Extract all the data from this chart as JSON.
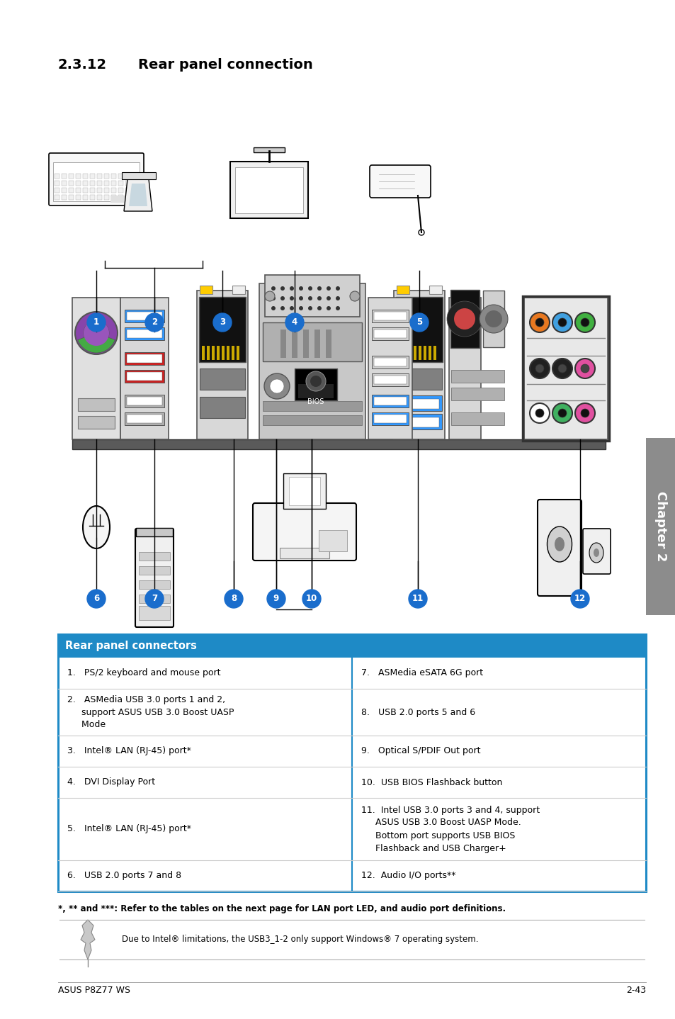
{
  "page_title_num": "2.3.12",
  "page_title_text": "Rear panel connection",
  "bg_color": "#ffffff",
  "table_header": "Rear panel connectors",
  "table_header_bg": "#1e8ac6",
  "table_header_color": "#ffffff",
  "table_border_color": "#1e8ac6",
  "table_line_color": "#cccccc",
  "footnote": "*, ** and ***: Refer to the tables on the next page for LAN port LED, and audio port definitions.",
  "note_text": "Due to Intel® limitations, the USB3_1-2 only support Windows® 7 operating system.",
  "footer_left": "ASUS P8Z77 WS",
  "footer_right": "2-43",
  "chapter_label": "Chapter 2",
  "badge_color": "#1a6dcc",
  "sidebar_color": "#8c8c8c",
  "rows": [
    [
      "1.   PS/2 keyboard and mouse port",
      "7.   ASMedia eSATA 6G port",
      44
    ],
    [
      "2.   ASMedia USB 3.0 ports 1 and 2,\n     support ASUS USB 3.0 Boost UASP\n     Mode",
      "8.   USB 2.0 ports 5 and 6",
      66
    ],
    [
      "3.   Intel® LAN (RJ-45) port*",
      "9.   Optical S/PDIF Out port",
      44
    ],
    [
      "4.   DVI Display Port",
      "10.  USB BIOS Flashback button",
      44
    ],
    [
      "5.   Intel® LAN (RJ-45) port*",
      "11.  Intel USB 3.0 ports 3 and 4, support\n     ASUS USB 3.0 Boost UASP Mode.\n     Bottom port supports USB BIOS\n     Flashback and USB Charger+",
      88
    ],
    [
      "6.   USB 2.0 ports 7 and 8",
      "12.  Audio I/O ports**",
      44
    ]
  ]
}
